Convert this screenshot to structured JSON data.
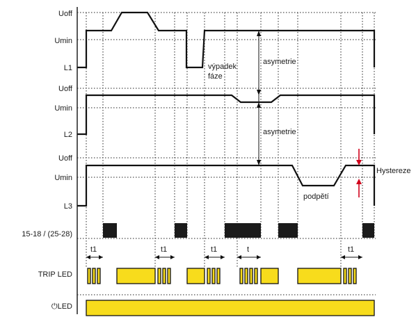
{
  "labels": {
    "l1_uoff": "Uoff",
    "l1_umin": "Umin",
    "l1": "L1",
    "l2_uoff": "Uoff",
    "l2_umin": "Umin",
    "l2": "L2",
    "l3_uoff": "Uoff",
    "l3_umin": "Umin",
    "l3": "L3",
    "relay": "15-18 / (25-28)",
    "trip_led": "TRIP LED",
    "power_led": "⏻LED"
  },
  "annotations": {
    "phase_loss_line1": "výpadek",
    "phase_loss_line2": "fáze",
    "asymmetry_1": "asymetrie",
    "asymmetry_2": "asymetrie",
    "undervoltage": "podpětí",
    "hysteresis": "Hystereze"
  },
  "timing": {
    "t1_a": "t1",
    "t1_b": "t1",
    "t1_c": "t1",
    "t": "t",
    "t1_d": "t1"
  },
  "colors": {
    "led_yellow": "#f7dc1c",
    "relay_black": "#1b1b1b",
    "hysteresis_arrows": "#d0021b"
  }
}
